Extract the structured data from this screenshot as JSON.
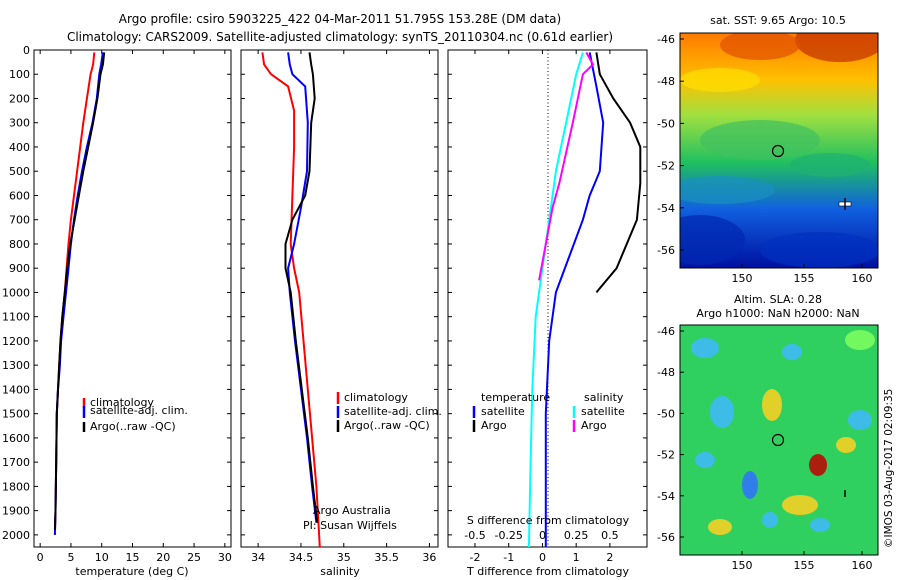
{
  "header": {
    "line1": "Argo profile: csiro 5903225_422 04-Mar-2011 51.795S 153.28E (DM data)",
    "line2": "Climatology: CARS2009. Satellite-adjusted climatology: synTS_20110304.nc (0.61d earlier)"
  },
  "colors": {
    "climatology": "#ff0000",
    "satellite": "#0000ff",
    "argo": "#000000",
    "salinity_sat": "#00ffff",
    "salinity_argo": "#ff00ff"
  },
  "chart_data": [
    {
      "type": "line",
      "name": "temperature-profile",
      "xlabel": "temperature (deg C)",
      "xlim": [
        -1,
        31
      ],
      "ylim": [
        0,
        2050
      ],
      "xticks": [
        "0",
        "5",
        "10",
        "15",
        "20",
        "25",
        "30"
      ],
      "yticks": [
        "0",
        "100",
        "200",
        "300",
        "400",
        "500",
        "600",
        "700",
        "800",
        "900",
        "1000",
        "1100",
        "1200",
        "1300",
        "1400",
        "1500",
        "1600",
        "1700",
        "1800",
        "1900",
        "2000"
      ],
      "legend": [
        "climatology",
        "satellite-adj. clim.",
        "Argo(..raw -QC)"
      ],
      "series": [
        {
          "name": "climatology",
          "color": "#ff0000",
          "points": [
            [
              8.8,
              10
            ],
            [
              8.6,
              60
            ],
            [
              8.2,
              100
            ],
            [
              7.6,
              200
            ],
            [
              7.0,
              300
            ],
            [
              6.5,
              400
            ],
            [
              6.0,
              500
            ],
            [
              5.5,
              600
            ],
            [
              5.0,
              700
            ],
            [
              4.6,
              800
            ],
            [
              4.3,
              900
            ],
            [
              4.0,
              1000
            ],
            [
              3.6,
              1100
            ],
            [
              3.3,
              1200
            ],
            [
              3.1,
              1300
            ],
            [
              2.9,
              1400
            ],
            [
              2.7,
              1500
            ],
            [
              2.6,
              1700
            ],
            [
              2.5,
              1900
            ],
            [
              2.4,
              2000
            ]
          ]
        },
        {
          "name": "satellite-adj. clim.",
          "color": "#0000ff",
          "points": [
            [
              10.2,
              10
            ],
            [
              9.9,
              60
            ],
            [
              9.6,
              100
            ],
            [
              9.2,
              200
            ],
            [
              8.5,
              300
            ],
            [
              7.6,
              400
            ],
            [
              6.8,
              500
            ],
            [
              6.1,
              600
            ],
            [
              5.5,
              700
            ],
            [
              5.0,
              800
            ],
            [
              4.6,
              900
            ],
            [
              4.2,
              1000
            ],
            [
              3.8,
              1100
            ],
            [
              3.4,
              1200
            ],
            [
              3.2,
              1300
            ],
            [
              2.9,
              1400
            ],
            [
              2.7,
              1500
            ],
            [
              2.6,
              1700
            ],
            [
              2.5,
              1900
            ],
            [
              2.4,
              2000
            ]
          ]
        },
        {
          "name": "Argo(..raw -QC)",
          "color": "#000000",
          "points": [
            [
              10.4,
              10
            ],
            [
              10.2,
              60
            ],
            [
              9.8,
              100
            ],
            [
              9.3,
              200
            ],
            [
              8.6,
              300
            ],
            [
              7.8,
              400
            ],
            [
              7.0,
              500
            ],
            [
              6.3,
              600
            ],
            [
              5.6,
              700
            ],
            [
              4.9,
              800
            ],
            [
              4.4,
              900
            ],
            [
              4.0,
              1000
            ],
            [
              3.6,
              1100
            ],
            [
              3.3,
              1200
            ],
            [
              3.1,
              1300
            ],
            [
              2.9,
              1400
            ],
            [
              2.7,
              1500
            ],
            [
              2.6,
              1700
            ],
            [
              2.5,
              1900
            ],
            [
              2.4,
              1980
            ]
          ]
        }
      ]
    },
    {
      "type": "line",
      "name": "salinity-profile",
      "xlabel": "salinity",
      "xlim": [
        33.8,
        36.1
      ],
      "ylim": [
        0,
        2050
      ],
      "xticks": [
        "34",
        "34.5",
        "35",
        "35.5",
        "36"
      ],
      "legend": [
        "climatology",
        "satellite-adj. clim.",
        "Argo(..raw -QC)"
      ],
      "annotation": [
        "Argo Australia",
        "PI: Susan Wijffels"
      ],
      "series": [
        {
          "name": "climatology",
          "color": "#ff0000",
          "points": [
            [
              34.05,
              10
            ],
            [
              34.07,
              60
            ],
            [
              34.15,
              100
            ],
            [
              34.35,
              150
            ],
            [
              34.42,
              250
            ],
            [
              34.42,
              400
            ],
            [
              34.4,
              600
            ],
            [
              34.38,
              800
            ],
            [
              34.42,
              900
            ],
            [
              34.48,
              1000
            ],
            [
              34.53,
              1200
            ],
            [
              34.58,
              1400
            ],
            [
              34.63,
              1600
            ],
            [
              34.68,
              1800
            ],
            [
              34.72,
              2050
            ]
          ]
        },
        {
          "name": "satellite-adj. clim.",
          "color": "#0000ff",
          "points": [
            [
              34.35,
              10
            ],
            [
              34.37,
              60
            ],
            [
              34.4,
              100
            ],
            [
              34.55,
              150
            ],
            [
              34.58,
              300
            ],
            [
              34.57,
              500
            ],
            [
              34.5,
              650
            ],
            [
              34.42,
              800
            ],
            [
              34.35,
              900
            ],
            [
              34.37,
              1000
            ],
            [
              34.43,
              1200
            ],
            [
              34.5,
              1400
            ],
            [
              34.57,
              1600
            ],
            [
              34.63,
              1800
            ],
            [
              34.68,
              1950
            ]
          ]
        },
        {
          "name": "Argo(..raw -QC)",
          "color": "#000000",
          "points": [
            [
              34.6,
              10
            ],
            [
              34.62,
              60
            ],
            [
              34.64,
              100
            ],
            [
              34.66,
              200
            ],
            [
              34.62,
              300
            ],
            [
              34.6,
              500
            ],
            [
              34.55,
              600
            ],
            [
              34.4,
              700
            ],
            [
              34.32,
              800
            ],
            [
              34.32,
              900
            ],
            [
              34.38,
              1000
            ],
            [
              34.44,
              1200
            ],
            [
              34.51,
              1400
            ],
            [
              34.58,
              1600
            ],
            [
              34.64,
              1800
            ],
            [
              34.69,
              1950
            ]
          ]
        }
      ]
    },
    {
      "type": "line",
      "name": "difference-profile",
      "xlabel": "T difference from climatology",
      "top_xlabel": "S difference from climatology",
      "xlim": [
        -2.8,
        3.1
      ],
      "ylim": [
        0,
        2050
      ],
      "xticks": [
        "-2",
        "-1",
        "0",
        "1",
        "2"
      ],
      "top_xticks": [
        "-0.5",
        "-0.25",
        "0",
        "0.25",
        "0.5"
      ],
      "legend_temperature_title": "temperature",
      "legend_salinity_title": "salinity",
      "legend_labels": [
        "satellite",
        "Argo",
        "satellite",
        "Argo"
      ],
      "series": [
        {
          "name": "temperature satellite",
          "color": "#0000ff",
          "points": [
            [
              1.4,
              10
            ],
            [
              1.6,
              150
            ],
            [
              1.8,
              300
            ],
            [
              1.7,
              500
            ],
            [
              1.4,
              600
            ],
            [
              1.2,
              700
            ],
            [
              0.8,
              850
            ],
            [
              0.4,
              1000
            ],
            [
              0.2,
              1200
            ],
            [
              0.1,
              1500
            ],
            [
              0.1,
              2050
            ]
          ]
        },
        {
          "name": "temperature Argo",
          "color": "#000000",
          "points": [
            [
              1.6,
              10
            ],
            [
              1.7,
              100
            ],
            [
              2.1,
              200
            ],
            [
              2.6,
              300
            ],
            [
              2.9,
              400
            ],
            [
              2.9,
              550
            ],
            [
              2.8,
              700
            ],
            [
              2.2,
              900
            ],
            [
              1.6,
              1000
            ]
          ]
        },
        {
          "name": "salinity satellite",
          "color": "#00ffff",
          "points": [
            [
              1.2,
              10
            ],
            [
              1.0,
              100
            ],
            [
              0.7,
              300
            ],
            [
              0.4,
              500
            ],
            [
              0.2,
              700
            ],
            [
              0.0,
              900
            ],
            [
              -0.2,
              1100
            ],
            [
              -0.3,
              1400
            ],
            [
              -0.35,
              1700
            ],
            [
              -0.4,
              2050
            ]
          ]
        },
        {
          "name": "salinity Argo",
          "color": "#ff00ff",
          "points": [
            [
              1.3,
              10
            ],
            [
              1.5,
              60
            ],
            [
              1.2,
              100
            ],
            [
              0.9,
              300
            ],
            [
              0.5,
              550
            ],
            [
              0.3,
              650
            ],
            [
              0.1,
              800
            ],
            [
              -0.1,
              950
            ]
          ]
        }
      ]
    },
    {
      "type": "heatmap",
      "name": "sst-map",
      "title": "sat. SST: 9.65 Argo: 10.5",
      "xticks": [
        "150",
        "155",
        "160"
      ],
      "yticks": [
        "-46",
        "-48",
        "-50",
        "-52",
        "-54",
        "-56"
      ]
    },
    {
      "type": "heatmap",
      "name": "sla-map",
      "title": [
        "Altim. SLA: 0.28",
        "Argo h1000: NaN h2000: NaN"
      ],
      "xticks": [
        "150",
        "155",
        "160"
      ],
      "yticks": [
        "-46",
        "-48",
        "-50",
        "-52",
        "-54",
        "-56"
      ]
    }
  ],
  "footer_stamp": "©IMOS 03-Aug-2017 02:09:35"
}
